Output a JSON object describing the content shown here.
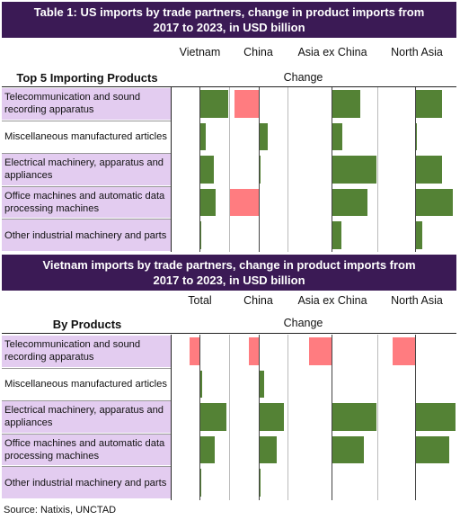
{
  "chart_data": [
    {
      "type": "bar",
      "title": "Table 1: US imports by trade partners, change in product imports from 2017 to 2023, in USD billion",
      "row_header": "Top 5 Importing Products",
      "value_header": "Change",
      "columns": [
        "Vietnam",
        "China",
        "Asia ex China",
        "North Asia"
      ],
      "categories": [
        "Telecommunication and sound recording apparatus",
        "Miscellaneous manufactured articles",
        "Electrical machinery, apparatus and appliances",
        "Office machines and automatic data processing machines",
        "Other industrial machinery and parts"
      ],
      "series": [
        {
          "name": "Vietnam",
          "values": [
            32,
            7,
            16,
            18,
            2
          ]
        },
        {
          "name": "China",
          "values": [
            -27,
            10,
            2,
            -32,
            0
          ]
        },
        {
          "name": "Asia ex China",
          "values": [
            32,
            12,
            50,
            40,
            11
          ]
        },
        {
          "name": "North Asia",
          "values": [
            30,
            2,
            30,
            42,
            8
          ]
        }
      ]
    },
    {
      "type": "bar",
      "title": "Vietnam imports by trade partners, change in product imports from 2017 to 2023, in USD billion",
      "row_header": "By Products",
      "value_header": "Change",
      "columns": [
        "Total",
        "China",
        "Asia ex China",
        "North Asia"
      ],
      "categories": [
        "Telecommunication and sound recording apparatus",
        "Miscellaneous manufactured articles",
        "Electrical machinery, apparatus and appliances",
        "Office machines and automatic data processing machines",
        "Other industrial machinery and parts"
      ],
      "series": [
        {
          "name": "Total",
          "values": [
            -11,
            3,
            30,
            17,
            2
          ]
        },
        {
          "name": "China",
          "values": [
            -11,
            6,
            28,
            20,
            2
          ]
        },
        {
          "name": "Asia ex China",
          "values": [
            -25,
            0,
            50,
            36,
            0
          ]
        },
        {
          "name": "North Asia",
          "values": [
            -25,
            0,
            45,
            38,
            0
          ]
        }
      ]
    }
  ],
  "source": "Source: Natixis, UNCTAD",
  "colors": {
    "positive": "#548235",
    "negative": "#ff7c80",
    "header": "#3b1a55",
    "row_band": "#e3ccf0"
  }
}
